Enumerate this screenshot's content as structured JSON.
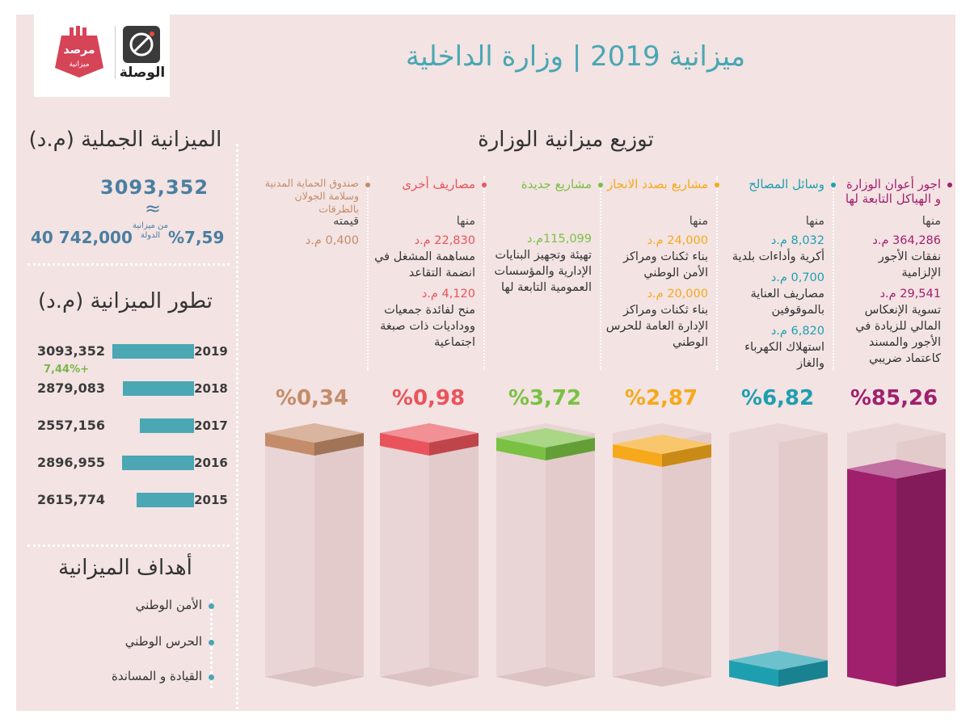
{
  "header": {
    "title": "ميزانية 2019 | وزارة الداخلية",
    "logo_marsad": "مرصد ميزانية",
    "logo_wassla": "الوصلة"
  },
  "total": {
    "title": "الميزانية الجملية (م.د)",
    "value": "3093,352",
    "approx_symbol": "≈",
    "share_pct": "%7,59",
    "share_label": "من ميزانية الدولة",
    "state_budget": "40 742,000"
  },
  "evolution": {
    "title": "تطور الميزانية (م.د)",
    "growth": "+7,44%",
    "rows": [
      {
        "year": "2019",
        "label": "3093,352",
        "value": 3093.352
      },
      {
        "year": "2018",
        "label": "2879,083",
        "value": 2879.083
      },
      {
        "year": "2017",
        "label": "2557,156",
        "value": 2557.156
      },
      {
        "year": "2016",
        "label": "2896,955",
        "value": 2896.955
      },
      {
        "year": "2015",
        "label": "2615,774",
        "value": 2615.774
      }
    ]
  },
  "goals": {
    "title": "أهداف الميزانية",
    "items": [
      "الأمن الوطني",
      "الحرس الوطني",
      "القيادة و المساندة"
    ]
  },
  "distribution": {
    "title": "توزيع ميزانية الوزارة"
  },
  "colors": {
    "teal": "#4aa7b3",
    "purple": "#a0206e",
    "orange": "#f5b21d",
    "green": "#7ac143",
    "red": "#e9545c",
    "brown": "#c48c6a"
  },
  "chart_data": {
    "type": "bar",
    "categories": [
      "اجور أعوان الوزارة و الهياكل التابعة لها",
      "وسائل المصالح",
      "مشاريع بصدد الانجاز",
      "مشاريع جديدة",
      "مصاريف أخرى",
      "صندوق الحماية المدنية وسلامة الجولان بالطرقات"
    ],
    "values": [
      85.26,
      6.82,
      2.87,
      3.72,
      0.98,
      0.34
    ],
    "value_labels": [
      "%85,26",
      "%6,82",
      "%2,87",
      "%3,72",
      "%0,98",
      "%0,34"
    ],
    "ylim": [
      0,
      100
    ],
    "columns": [
      {
        "title": "اجور أعوان الوزارة و الهياكل التابعة لها",
        "color": "#a0206e",
        "intro": "منها",
        "items": [
          {
            "amount": "364,286 م.د",
            "desc": "نفقات الأجور الإلزامية"
          },
          {
            "amount": "29,541 م.د",
            "desc": "تسوية الإنعكاس المالي للزيادة في الأجور والمسند كاعتماد ضريبي"
          }
        ]
      },
      {
        "title": "وسائل المصالح",
        "color": "#1e9fb0",
        "intro": "منها",
        "items": [
          {
            "amount": "8,032 م.د",
            "desc": "أكرية وأداءات بلدية"
          },
          {
            "amount": "0,700 م.د",
            "desc": "مصاريف العناية بالموقوفين"
          },
          {
            "amount": "6,820 م.د",
            "desc": "استهلاك الكهرباء والغاز"
          }
        ]
      },
      {
        "title": "مشاريع بصدد الانجاز",
        "color": "#f5a91b",
        "intro": "منها",
        "items": [
          {
            "amount": "24,000 م.د",
            "desc": "بناء ثكنات ومراكز الأمن الوطني"
          },
          {
            "amount": "20,000 م.د",
            "desc": "بناء ثكنات ومراكز الإدارة العامة للحرس الوطني"
          }
        ]
      },
      {
        "title": "مشاريع جديدة",
        "color": "#7ac143",
        "intro": "",
        "items": [
          {
            "amount": "115,099م.د",
            "desc": "تهيئة وتجهيز البنايات الإدارية والمؤسسات العمومية التابعة لها"
          }
        ]
      },
      {
        "title": "مصاريف أخرى",
        "color": "#e9545c",
        "intro": "منها",
        "items": [
          {
            "amount": "22,830 م.د",
            "desc": "مساهمة المشغل في انضمة التقاعد"
          },
          {
            "amount": "4,120 م.د",
            "desc": "منح لفائدة جمعيات ووداديات ذات صبغة اجتماعية"
          }
        ]
      },
      {
        "title": "صندوق الحماية المدنية وسلامة الجولان بالطرقات",
        "color": "#c48c6a",
        "intro": "قيمته",
        "items": [
          {
            "amount": "0,400 م.د",
            "desc": ""
          }
        ]
      }
    ]
  }
}
